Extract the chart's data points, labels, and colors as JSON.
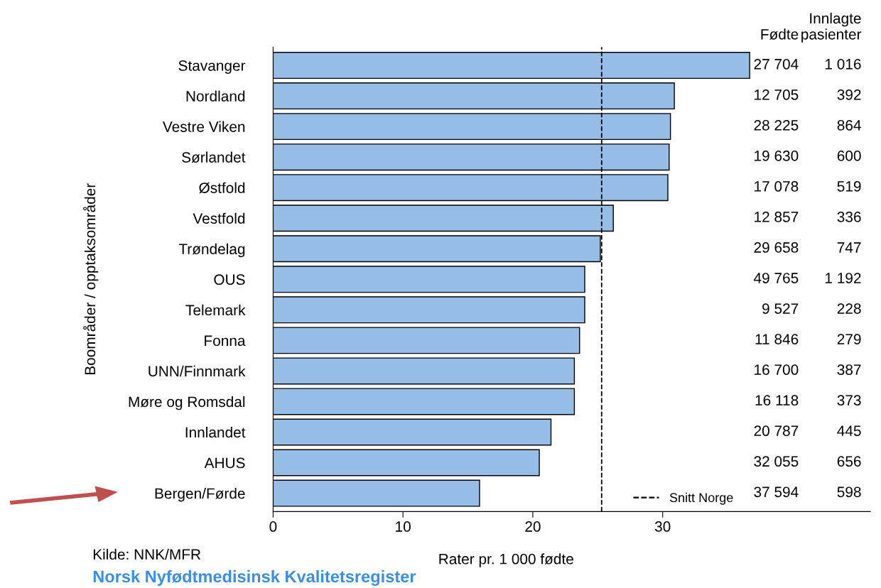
{
  "chart_data": {
    "type": "bar",
    "orientation": "horizontal",
    "xlabel": "Rater pr. 1 000 fødte",
    "ylabel": "Boområder / opptaksområder",
    "categories": [
      "Stavanger",
      "Nordland",
      "Vestre Viken",
      "Sørlandet",
      "Østfold",
      "Vestfold",
      "Trøndelag",
      "OUS",
      "Telemark",
      "Fonna",
      "UNN/Finnmark",
      "Møre og Romsdal",
      "Innlandet",
      "AHUS",
      "Bergen/Førde"
    ],
    "values": [
      36.7,
      30.9,
      30.6,
      30.5,
      30.4,
      26.2,
      25.2,
      24.0,
      24.0,
      23.6,
      23.2,
      23.2,
      21.4,
      20.5,
      15.9
    ],
    "color": "#95bde6",
    "xlim": [
      0,
      46
    ],
    "xticks": [
      0,
      10,
      20,
      30
    ],
    "grid": false,
    "legend": "bottom right",
    "ref_lines": [
      {
        "axis": "x",
        "value": 25.3,
        "label": "Snitt Norge",
        "line_style": "dashed",
        "color": "#000000"
      }
    ],
    "annotations": [
      "Fødte",
      "Innlagte\npasienter",
      "27 704",
      "1 016",
      "12 705",
      "392",
      "28 225",
      "864",
      "19 630",
      "600",
      "17 078",
      "519",
      "12 857",
      "336",
      "29 658",
      "747",
      "49 765",
      "1 192",
      "9 527",
      "228",
      "11 846",
      "279",
      "16 700",
      "387",
      "16 118",
      "373",
      "20 787",
      "445",
      "32 055",
      "656",
      "37 594",
      "598",
      "Kilde: NNK/MFR",
      "Norsk Nyfødtmedisinsk Kvalitetsregister"
    ]
  }
}
